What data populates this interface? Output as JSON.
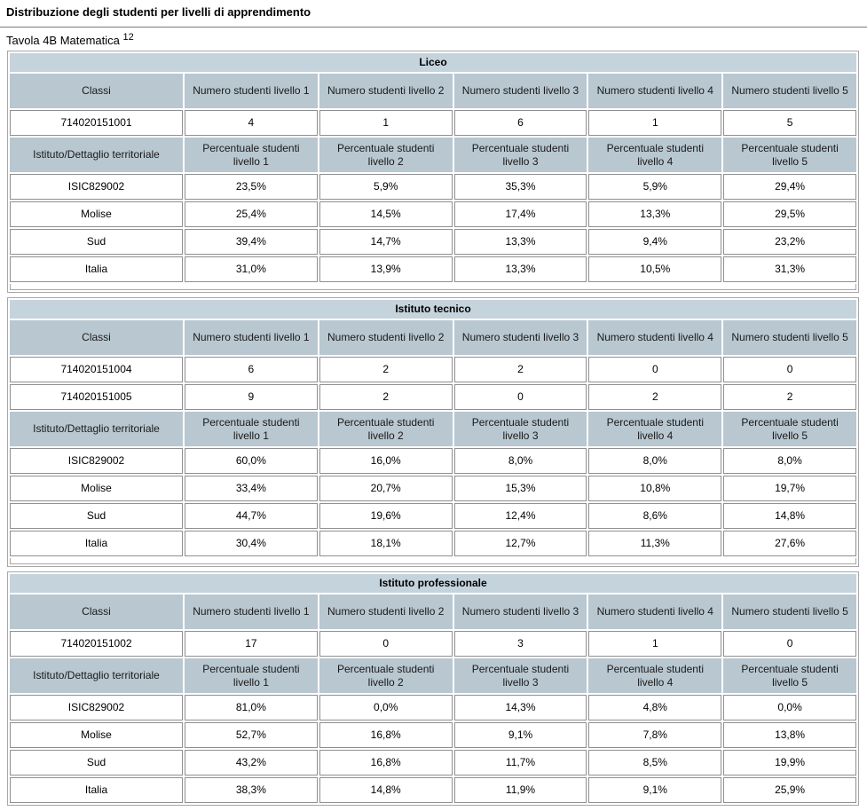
{
  "page": {
    "title": "Distribuzione degli studenti per livelli di apprendimento",
    "caption": "Tavola 4B Matematica",
    "caption_sup": "12"
  },
  "sections": [
    {
      "title": "Liceo",
      "class_header": [
        "Classi",
        "Numero studenti livello 1",
        "Numero studenti livello 2",
        "Numero studenti livello 3",
        "Numero studenti livello 4",
        "Numero studenti livello 5"
      ],
      "class_rows": [
        [
          "714020151001",
          "4",
          "1",
          "6",
          "1",
          "5"
        ]
      ],
      "territory_header": [
        "Istituto/Dettaglio territoriale",
        "Percentuale studenti livello 1",
        "Percentuale studenti livello 2",
        "Percentuale studenti livello 3",
        "Percentuale studenti livello 4",
        "Percentuale studenti livello 5"
      ],
      "territory_rows": [
        [
          "ISIC829002",
          "23,5%",
          "5,9%",
          "35,3%",
          "5,9%",
          "29,4%"
        ],
        [
          "Molise",
          "25,4%",
          "14,5%",
          "17,4%",
          "13,3%",
          "29,5%"
        ],
        [
          "Sud",
          "39,4%",
          "14,7%",
          "13,3%",
          "9,4%",
          "23,2%"
        ],
        [
          "Italia",
          "31,0%",
          "13,9%",
          "13,3%",
          "10,5%",
          "31,3%"
        ]
      ]
    },
    {
      "title": "Istituto tecnico",
      "class_header": [
        "Classi",
        "Numero studenti livello 1",
        "Numero studenti livello 2",
        "Numero studenti livello 3",
        "Numero studenti livello 4",
        "Numero studenti livello 5"
      ],
      "class_rows": [
        [
          "714020151004",
          "6",
          "2",
          "2",
          "0",
          "0"
        ],
        [
          "714020151005",
          "9",
          "2",
          "0",
          "2",
          "2"
        ]
      ],
      "territory_header": [
        "Istituto/Dettaglio territoriale",
        "Percentuale studenti livello 1",
        "Percentuale studenti livello 2",
        "Percentuale studenti livello 3",
        "Percentuale studenti livello 4",
        "Percentuale studenti livello 5"
      ],
      "territory_rows": [
        [
          "ISIC829002",
          "60,0%",
          "16,0%",
          "8,0%",
          "8,0%",
          "8,0%"
        ],
        [
          "Molise",
          "33,4%",
          "20,7%",
          "15,3%",
          "10,8%",
          "19,7%"
        ],
        [
          "Sud",
          "44,7%",
          "19,6%",
          "12,4%",
          "8,6%",
          "14,8%"
        ],
        [
          "Italia",
          "30,4%",
          "18,1%",
          "12,7%",
          "11,3%",
          "27,6%"
        ]
      ]
    },
    {
      "title": "Istituto professionale",
      "class_header": [
        "Classi",
        "Numero studenti livello 1",
        "Numero studenti livello 2",
        "Numero studenti livello 3",
        "Numero studenti livello 4",
        "Numero studenti livello 5"
      ],
      "class_rows": [
        [
          "714020151002",
          "17",
          "0",
          "3",
          "1",
          "0"
        ]
      ],
      "territory_header": [
        "Istituto/Dettaglio territoriale",
        "Percentuale studenti livello 1",
        "Percentuale studenti livello 2",
        "Percentuale studenti livello 3",
        "Percentuale studenti livello 4",
        "Percentuale studenti livello 5"
      ],
      "territory_rows": [
        [
          "ISIC829002",
          "81,0%",
          "0,0%",
          "14,3%",
          "4,8%",
          "0,0%"
        ],
        [
          "Molise",
          "52,7%",
          "16,8%",
          "9,1%",
          "7,8%",
          "13,8%"
        ],
        [
          "Sud",
          "43,2%",
          "16,8%",
          "11,7%",
          "8,5%",
          "19,9%"
        ],
        [
          "Italia",
          "38,3%",
          "14,8%",
          "11,9%",
          "9,1%",
          "25,9%"
        ]
      ]
    }
  ]
}
